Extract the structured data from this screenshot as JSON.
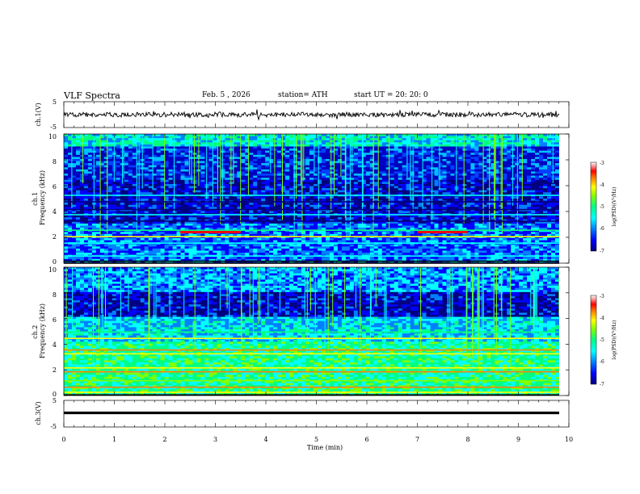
{
  "header": {
    "title": "VLF Spectra",
    "date": "Feb. 5 , 2026",
    "station": "station= ATH",
    "start": "start UT = 20: 20: 0"
  },
  "colorbar": {
    "label": "log(PSD)(V²/Hz)",
    "ticks": [
      "-3",
      "-4",
      "-5",
      "-6",
      "-7"
    ],
    "colors": [
      "#000080",
      "#0000ff",
      "#0080ff",
      "#00ffff",
      "#00ff80",
      "#80ff00",
      "#ffff00",
      "#ff8000",
      "#ff0000",
      "#ffffff"
    ]
  },
  "chart_data": [
    {
      "type": "line",
      "panel": "ch1-waveform",
      "ylabel": "ch.1(V)",
      "yticks": [
        "5",
        "-5"
      ],
      "ylim": [
        -5,
        5
      ],
      "xlim": [
        0,
        10
      ],
      "series": [
        {
          "values_approx": "noisy trace fluctuating around 0 V over 0–9.8 min"
        }
      ]
    },
    {
      "type": "heatmap",
      "panel": "ch1-spectrogram",
      "ylabel": "ch.1\nFrequency (kHz)",
      "yticks": [
        "0",
        "2",
        "4",
        "6",
        "8",
        "10"
      ],
      "ylim": [
        0,
        10
      ],
      "xlim": [
        0,
        10
      ],
      "z_range": [
        -7,
        -3
      ],
      "features": [
        {
          "kind": "band",
          "freq_khz": 2.4,
          "color": "#ff0000",
          "from_min": 2.3,
          "to_min": 3.5
        },
        {
          "kind": "band",
          "freq_khz": 2.4,
          "color": "#ff0000",
          "from_min": 7.0,
          "to_min": 8.0
        }
      ]
    },
    {
      "type": "heatmap",
      "panel": "ch2-spectrogram",
      "ylabel": "ch.2\nFrequency (kHz)",
      "yticks": [
        "0",
        "2",
        "4",
        "6",
        "8",
        "10"
      ],
      "ylim": [
        0,
        10
      ],
      "xlim": [
        0,
        10
      ],
      "z_range": [
        -7,
        -3
      ]
    },
    {
      "type": "line",
      "panel": "ch3-waveform",
      "ylabel": "ch.3(V)",
      "yticks": [
        "5",
        "-5"
      ],
      "ylim": [
        -5,
        5
      ],
      "xlim": [
        0,
        10
      ],
      "series": [
        {
          "values_approx": "flat line near -2 V"
        }
      ]
    }
  ],
  "xaxis": {
    "label": "Time (min)",
    "ticks": [
      "0",
      "1",
      "2",
      "3",
      "4",
      "5",
      "6",
      "7",
      "8",
      "9",
      "10"
    ]
  }
}
